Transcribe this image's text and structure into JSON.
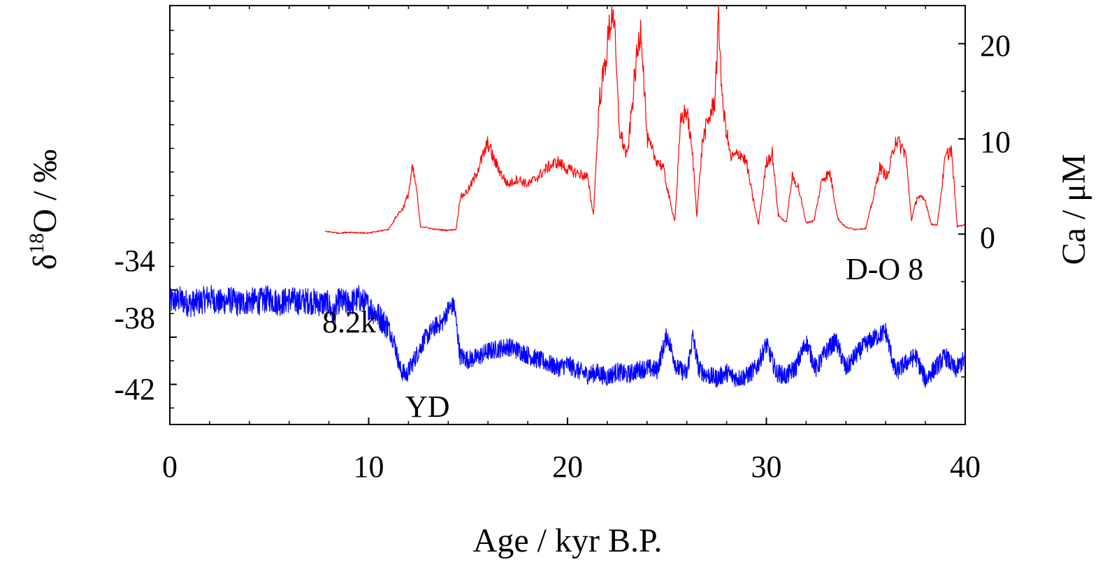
{
  "chart_data": {
    "type": "line",
    "xlabel": "Age / kyr B.P.",
    "ylabel_left": {
      "main": "δ",
      "sup": "18",
      "rest": "O / ‰"
    },
    "ylabel_right": "Ca / μM",
    "xlim": [
      0,
      40
    ],
    "xticks": [
      "0",
      "10",
      "20",
      "30",
      "40"
    ],
    "ylim_left": [
      -45.4,
      -9.9
    ],
    "yticks_left": [
      "-34",
      "-38",
      "-42"
    ],
    "ylim_right": [
      -20,
      24
    ],
    "yticks_right": [
      "20",
      "10",
      "0"
    ],
    "grid": false,
    "annotations": [
      {
        "text": "8.2k",
        "x": 8.1,
        "y": -39.4
      },
      {
        "text": "YD",
        "x": 11.8,
        "y": -43.6
      },
      {
        "text": "D-O 8",
        "x": 34.1,
        "y": -36.4
      }
    ],
    "series": [
      {
        "axis": "left",
        "color": "#0000ff",
        "x": [
          0,
          0.5,
          1,
          1.5,
          2,
          2.5,
          3,
          3.5,
          4,
          4.5,
          5,
          5.5,
          6,
          6.5,
          7,
          7.5,
          8,
          8.2,
          8.5,
          9,
          9.5,
          10,
          10.5,
          11,
          11.3,
          11.6,
          11.9,
          12.2,
          12.5,
          12.8,
          13.1,
          13.4,
          13.7,
          14,
          14.3,
          14.6,
          15,
          15.5,
          16,
          16.5,
          17,
          17.5,
          18,
          18.5,
          19,
          19.5,
          20,
          20.5,
          21,
          21.5,
          22,
          22.5,
          23,
          23.5,
          24,
          24.5,
          25,
          25.5,
          26,
          26.3,
          26.6,
          27,
          27.5,
          28,
          28.5,
          29,
          29.5,
          30,
          30.5,
          31,
          31.5,
          32,
          32.5,
          33,
          33.5,
          34,
          34.5,
          35,
          35.5,
          36,
          36.5,
          37,
          37.5,
          38,
          38.5,
          39,
          39.5,
          40
        ],
        "y": [
          -35.0,
          -34.8,
          -35.2,
          -35.0,
          -34.6,
          -35.1,
          -34.8,
          -35.2,
          -34.9,
          -35.0,
          -34.7,
          -35.1,
          -34.8,
          -35.0,
          -34.9,
          -35.1,
          -35.2,
          -36.2,
          -34.9,
          -35.2,
          -34.7,
          -35.4,
          -36.2,
          -37.2,
          -38.5,
          -40.8,
          -41.2,
          -40.2,
          -39.2,
          -38.2,
          -37.6,
          -37.0,
          -36.8,
          -35.6,
          -35.3,
          -39.6,
          -39.9,
          -39.7,
          -39.2,
          -39.0,
          -38.8,
          -39.1,
          -39.5,
          -39.9,
          -40.2,
          -40.6,
          -40.3,
          -40.8,
          -41.2,
          -41.0,
          -41.4,
          -40.9,
          -41.2,
          -40.8,
          -40.6,
          -40.8,
          -37.8,
          -40.6,
          -41.1,
          -37.9,
          -40.7,
          -41.2,
          -41.5,
          -41.0,
          -41.5,
          -41.3,
          -40.6,
          -38.6,
          -41.0,
          -41.3,
          -40.5,
          -38.4,
          -40.7,
          -39.2,
          -38.3,
          -40.7,
          -39.5,
          -38.6,
          -38.0,
          -37.5,
          -41.0,
          -40.2,
          -39.6,
          -41.6,
          -40.6,
          -39.6,
          -40.8,
          -39.8
        ]
      },
      {
        "axis": "right",
        "color": "#ff0000",
        "x": [
          7.8,
          8.5,
          9,
          10,
          11,
          11.5,
          11.7,
          12,
          12.2,
          12.4,
          12.6,
          12.9,
          13.3,
          14,
          14.4,
          14.6,
          15,
          15.3,
          15.6,
          16,
          16.3,
          16.7,
          17,
          17.5,
          18,
          18.5,
          19,
          19.5,
          20,
          20.5,
          21,
          21.3,
          21.6,
          21.9,
          22.1,
          22.3,
          22.6,
          23,
          23.4,
          23.7,
          24,
          24.4,
          24.8,
          25.2,
          25.4,
          25.7,
          26.0,
          26.3,
          26.5,
          26.8,
          27.1,
          27.4,
          27.6,
          27.8,
          28.2,
          28.7,
          29.0,
          29.3,
          29.6,
          30.0,
          30.3,
          30.6,
          31.0,
          31.3,
          31.6,
          32.0,
          32.4,
          32.8,
          33.2,
          33.6,
          34.0,
          34.5,
          35.0,
          35.4,
          35.7,
          36.1,
          36.5,
          37.0,
          37.3,
          37.6,
          38.0,
          38.3,
          38.6,
          39.0,
          39.3,
          39.6,
          40
        ],
        "y": [
          0.3,
          0.1,
          0.2,
          0.1,
          0.5,
          2.2,
          2.6,
          4.2,
          7.0,
          4.8,
          0.8,
          0.7,
          0.5,
          0.4,
          0.5,
          3.8,
          4.6,
          5.8,
          7.4,
          9.6,
          7.8,
          6.2,
          5.2,
          5.8,
          5.2,
          6.0,
          7.0,
          7.6,
          6.8,
          6.4,
          6.0,
          2.0,
          14.0,
          18.0,
          21.5,
          24.0,
          11.0,
          8.0,
          17.0,
          22.0,
          10.0,
          8.0,
          7.0,
          3.0,
          1.4,
          12.0,
          13.0,
          8.0,
          2.0,
          10.0,
          12.0,
          14.0,
          22.5,
          13.5,
          8.0,
          8.5,
          7.5,
          4.0,
          1.0,
          7.5,
          8.5,
          2.0,
          1.2,
          6.0,
          5.0,
          1.2,
          1.4,
          5.8,
          6.4,
          1.6,
          0.7,
          0.5,
          0.6,
          4.0,
          7.0,
          6.0,
          10.0,
          8.5,
          1.5,
          4.0,
          3.5,
          1.0,
          1.0,
          8.0,
          9.0,
          0.8,
          1.0
        ]
      }
    ]
  }
}
